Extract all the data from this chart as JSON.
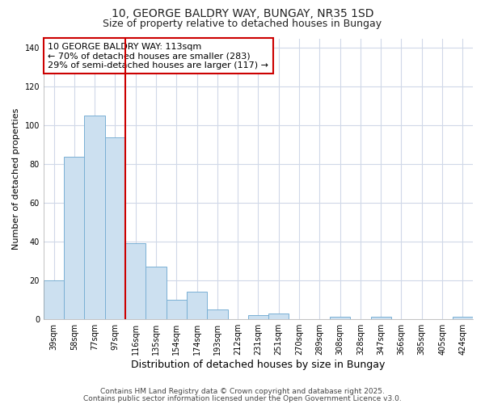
{
  "title_line1": "10, GEORGE BALDRY WAY, BUNGAY, NR35 1SD",
  "title_line2": "Size of property relative to detached houses in Bungay",
  "xlabel": "Distribution of detached houses by size in Bungay",
  "ylabel": "Number of detached properties",
  "categories": [
    "39sqm",
    "58sqm",
    "77sqm",
    "97sqm",
    "116sqm",
    "135sqm",
    "154sqm",
    "174sqm",
    "193sqm",
    "212sqm",
    "231sqm",
    "251sqm",
    "270sqm",
    "289sqm",
    "308sqm",
    "328sqm",
    "347sqm",
    "366sqm",
    "385sqm",
    "405sqm",
    "424sqm"
  ],
  "values": [
    20,
    84,
    105,
    94,
    39,
    27,
    10,
    14,
    5,
    0,
    2,
    3,
    0,
    0,
    1,
    0,
    1,
    0,
    0,
    0,
    1
  ],
  "bar_color": "#cce0f0",
  "bar_edge_color": "#7ab0d4",
  "vline_x_index": 4,
  "vline_color": "#cc0000",
  "annotation_text": "10 GEORGE BALDRY WAY: 113sqm\n← 70% of detached houses are smaller (283)\n29% of semi-detached houses are larger (117) →",
  "annotation_box_color": "#cc0000",
  "ylim": [
    0,
    145
  ],
  "yticks": [
    0,
    20,
    40,
    60,
    80,
    100,
    120,
    140
  ],
  "background_color": "#ffffff",
  "plot_bg_color": "#ffffff",
  "grid_color": "#d0d8e8",
  "footer_line1": "Contains HM Land Registry data © Crown copyright and database right 2025.",
  "footer_line2": "Contains public sector information licensed under the Open Government Licence v3.0.",
  "title_fontsize": 10,
  "subtitle_fontsize": 9,
  "xlabel_fontsize": 9,
  "ylabel_fontsize": 8,
  "tick_fontsize": 7,
  "annotation_fontsize": 8,
  "footer_fontsize": 6.5
}
